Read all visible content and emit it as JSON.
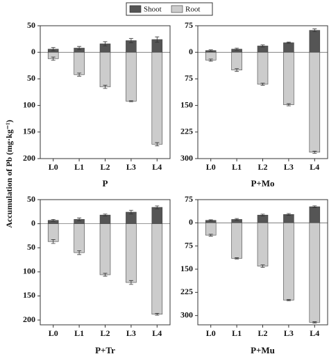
{
  "chart_data": [
    {
      "type": "bar",
      "title": "P",
      "y_label": "Accumulation of Pb (mg·kg⁻¹)",
      "categories": [
        "L0",
        "L1",
        "L2",
        "L3",
        "L4"
      ],
      "series": [
        {
          "name": "Shoot",
          "color": "#555555",
          "values": [
            6,
            8,
            16,
            22,
            24
          ],
          "errors": [
            3,
            3,
            4,
            4,
            5
          ]
        },
        {
          "name": "Root",
          "color": "#cccccc",
          "values": [
            -12,
            -42,
            -65,
            -92,
            -173
          ],
          "errors": [
            3,
            3,
            3,
            1,
            3
          ]
        }
      ],
      "ylim": [
        -200,
        50
      ],
      "yticks": [
        50,
        0,
        {
          "value": -50,
          "label": "50"
        },
        {
          "value": -100,
          "label": "100"
        },
        {
          "value": -150,
          "label": "150"
        },
        {
          "value": -200,
          "label": "200"
        }
      ]
    },
    {
      "type": "bar",
      "title": "P+Mo",
      "categories": [
        "L0",
        "L1",
        "L2",
        "L3",
        "L4"
      ],
      "series": [
        {
          "color": "#555555",
          "values": [
            5,
            9,
            18,
            27,
            62
          ],
          "errors": [
            2,
            3,
            3,
            2,
            4
          ]
        },
        {
          "color": "#cccccc",
          "values": [
            -22,
            -50,
            -90,
            -148,
            -282
          ],
          "errors": [
            3,
            4,
            3,
            3,
            3
          ]
        }
      ],
      "ylim": [
        -300,
        75
      ],
      "yticks": [
        75,
        0,
        {
          "value": -75,
          "label": "75"
        },
        {
          "value": -150,
          "label": "150"
        },
        {
          "value": -225,
          "label": "225"
        },
        {
          "value": -300,
          "label": "300"
        }
      ]
    },
    {
      "type": "bar",
      "title": "P+Tr",
      "categories": [
        "L0",
        "L1",
        "L2",
        "L3",
        "L4"
      ],
      "series": [
        {
          "color": "#555555",
          "values": [
            7,
            9,
            18,
            24,
            34
          ],
          "errors": [
            2,
            3,
            2,
            4,
            3
          ]
        },
        {
          "color": "#cccccc",
          "values": [
            -37,
            -60,
            -106,
            -122,
            -188
          ],
          "errors": [
            4,
            4,
            3,
            4,
            2
          ]
        }
      ],
      "ylim": [
        -210,
        50
      ],
      "yticks": [
        50,
        0,
        {
          "value": -50,
          "label": "50"
        },
        {
          "value": -100,
          "label": "100"
        },
        {
          "value": -150,
          "label": "150"
        },
        {
          "value": -200,
          "label": "200"
        }
      ]
    },
    {
      "type": "bar",
      "title": "P+Mu",
      "categories": [
        "L0",
        "L1",
        "L2",
        "L3",
        "L4"
      ],
      "series": [
        {
          "color": "#555555",
          "values": [
            8,
            11,
            25,
            27,
            52
          ],
          "errors": [
            2,
            3,
            3,
            3,
            3
          ]
        },
        {
          "color": "#cccccc",
          "values": [
            -40,
            -115,
            -140,
            -250,
            -322
          ],
          "errors": [
            3,
            2,
            4,
            2,
            2
          ]
        }
      ],
      "ylim": [
        -330,
        75
      ],
      "yticks": [
        75,
        0,
        {
          "value": -75,
          "label": "75"
        },
        {
          "value": -150,
          "label": "150"
        },
        {
          "value": -225,
          "label": "225"
        },
        {
          "value": -300,
          "label": "300"
        }
      ]
    }
  ]
}
